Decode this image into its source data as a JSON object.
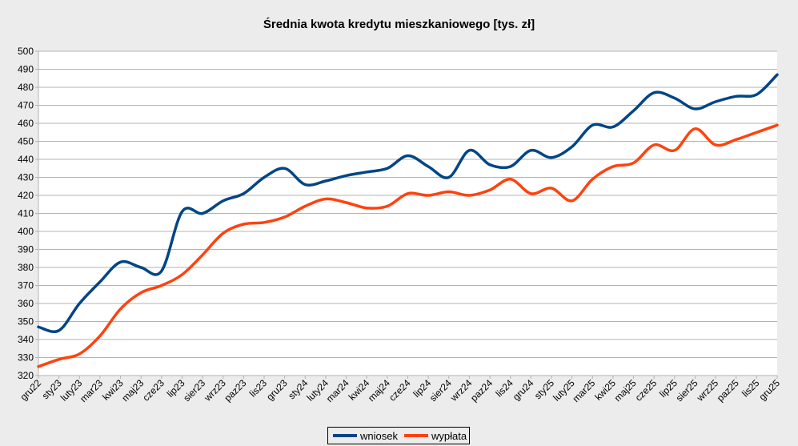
{
  "chart_data": {
    "type": "line",
    "title": "Średnia kwota kredytu mieszkaniowego [tys. zł]",
    "xlabel": "",
    "ylabel": "",
    "ylim": [
      320,
      500
    ],
    "yticks": [
      320,
      330,
      340,
      350,
      360,
      370,
      380,
      390,
      400,
      410,
      420,
      430,
      440,
      450,
      460,
      470,
      480,
      490,
      500
    ],
    "grid": true,
    "legend_position": "bottom",
    "categories": [
      "gru22",
      "sty23",
      "luty23",
      "mar23",
      "kwi23",
      "maj23",
      "cze23",
      "lip23",
      "sier23",
      "wrz23",
      "paz23",
      "lis23",
      "gru23",
      "sty24",
      "luty24",
      "mar24",
      "kwi24",
      "maj24",
      "cze24",
      "lip24",
      "sier24",
      "wrz24",
      "paz24",
      "lis24",
      "gru24",
      "sty25",
      "luty25",
      "mar25",
      "kwi25",
      "maj25",
      "cze25",
      "lip25",
      "sier25",
      "wrz25",
      "paz25",
      "lis25",
      "gru25"
    ],
    "series": [
      {
        "name": "wniosek",
        "color": "#004586",
        "values": [
          347,
          345,
          360,
          372,
          383,
          380,
          378,
          411,
          410,
          417,
          421,
          430,
          435,
          426,
          428,
          431,
          433,
          435,
          442,
          436,
          430,
          445,
          437,
          436,
          445,
          441,
          447,
          459,
          458,
          467,
          477,
          474,
          468,
          472,
          475,
          476,
          487
        ]
      },
      {
        "name": "wypłata",
        "color": "#ff420e",
        "values": [
          325,
          329,
          332,
          342,
          357,
          366,
          370,
          376,
          387,
          399,
          404,
          405,
          408,
          414,
          418,
          416,
          413,
          414,
          421,
          420,
          422,
          420,
          423,
          429,
          421,
          424,
          417,
          429,
          436,
          438,
          448,
          445,
          457,
          448,
          451,
          455,
          459
        ]
      }
    ]
  }
}
